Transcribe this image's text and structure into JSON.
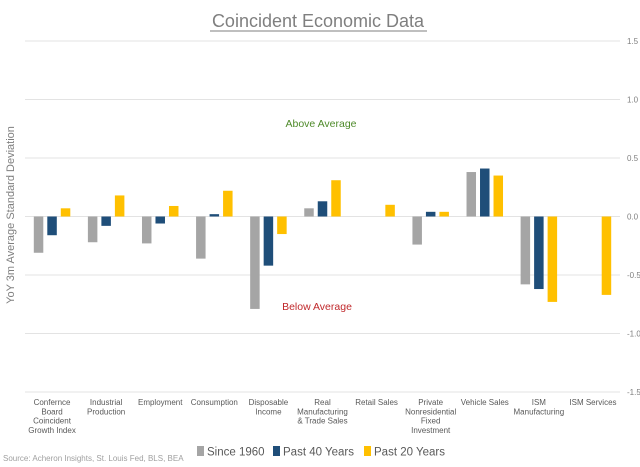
{
  "chart_data": {
    "type": "bar",
    "title": "Coincident Economic Data",
    "ylabel": "YoY 3m Average Standard Deviation",
    "xlabel": "",
    "ylim": [
      -1.5,
      1.5
    ],
    "yticks": [
      "1.5",
      "1.0",
      "0.5",
      "0.0",
      "-0.5",
      "-1.0",
      "-1.5"
    ],
    "grid": true,
    "legend_position": "bottom",
    "categories": [
      "Confernce Board Coincident Growth Index",
      "Industrial Production",
      "Employment",
      "Consumption",
      "Disposable Income",
      "Real Manufacturing & Trade Sales",
      "Retail Sales",
      "Private Nonresidential Fixed Investment",
      "Vehicle Sales",
      "ISM Manufacturing",
      "ISM Services"
    ],
    "category_lines": [
      [
        "Confernce",
        "Board",
        "Coincident",
        "Growth Index"
      ],
      [
        "Industrial",
        "Production"
      ],
      [
        "Employment"
      ],
      [
        "Consumption"
      ],
      [
        "Disposable",
        "Income"
      ],
      [
        "Real",
        "Manufacturing",
        "& Trade Sales"
      ],
      [
        "Retail Sales"
      ],
      [
        "Private",
        "Nonresidential",
        "Fixed",
        "Investment"
      ],
      [
        "Vehicle Sales"
      ],
      [
        "ISM",
        "Manufacturing"
      ],
      [
        "ISM Services"
      ]
    ],
    "series": [
      {
        "name": "Since 1960",
        "color": "#a5a5a5",
        "values": [
          -0.31,
          -0.22,
          -0.23,
          -0.36,
          -0.79,
          0.07,
          null,
          -0.24,
          0.38,
          -0.58,
          null
        ]
      },
      {
        "name": "Past 40 Years",
        "color": "#1f4e79",
        "values": [
          -0.16,
          -0.08,
          -0.06,
          0.02,
          -0.42,
          0.13,
          null,
          0.04,
          0.41,
          -0.62,
          null
        ]
      },
      {
        "name": "Past 20 Years",
        "color": "#ffc000",
        "values": [
          0.07,
          0.18,
          0.09,
          0.22,
          -0.15,
          0.31,
          0.1,
          0.04,
          0.35,
          -0.73,
          -0.67
        ]
      }
    ],
    "annotations": [
      {
        "text": "Above Average",
        "color": "#4e8a2a"
      },
      {
        "text": "Below Average",
        "color": "#c0282b"
      }
    ]
  },
  "source": "Source: Acheron Insights, St. Louis Fed, BLS, BEA"
}
